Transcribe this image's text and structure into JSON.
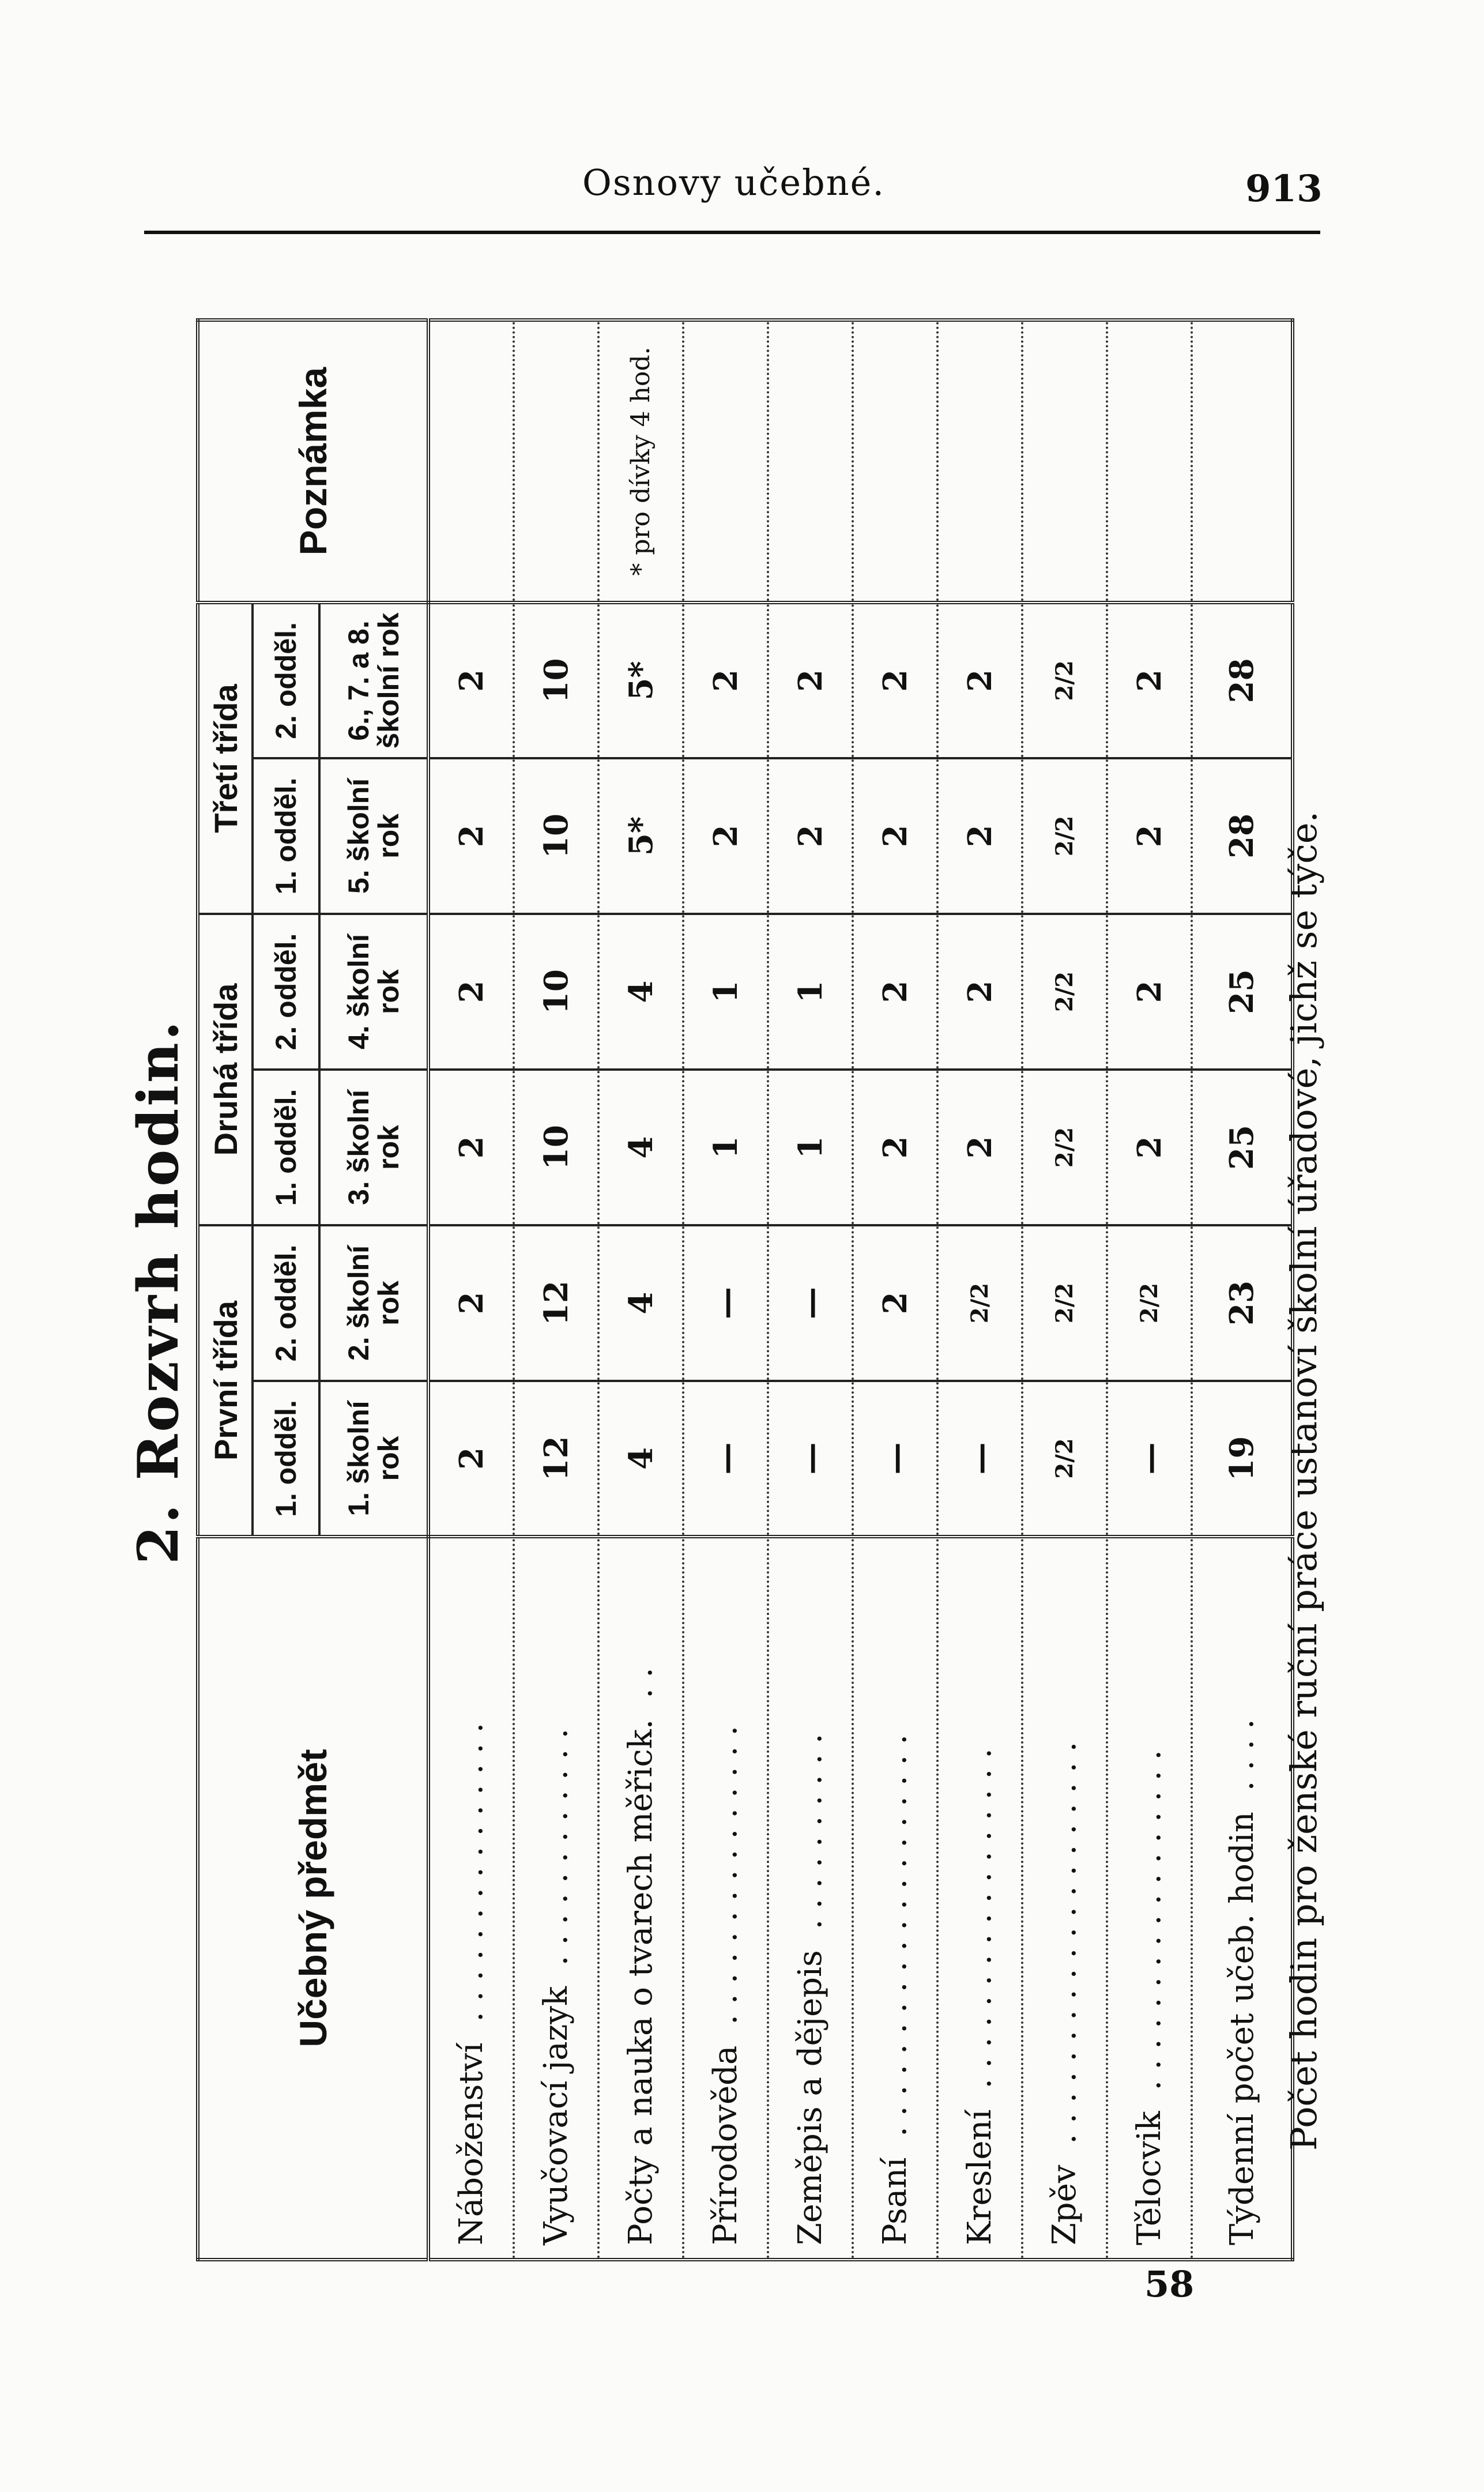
{
  "page_header": {
    "running_title": "Osnovy učebné.",
    "page_number": "913",
    "folio": "58"
  },
  "section_title": "2. Rozvrh hodin.",
  "table": {
    "subject_header": "Učebný předmět",
    "note_header": "Poznámka",
    "classes": [
      "První třída",
      "Druhá třída",
      "Třetí třída"
    ],
    "divisions": [
      "1. odděl.",
      "2. odděl.",
      "1. odděl.",
      "2. odděl.",
      "1. odděl.",
      "2. odděl."
    ],
    "school_years": [
      "1. školní rok",
      "2. školní rok",
      "3. školní rok",
      "4. školní rok",
      "5. školní rok",
      "6., 7. a 8. školní rok"
    ],
    "rows": [
      {
        "subject": "Náboženství",
        "values": [
          "2",
          "2",
          "2",
          "2",
          "2",
          "2"
        ]
      },
      {
        "subject": "Vyučovací jazyk",
        "values": [
          "12",
          "12",
          "10",
          "10",
          "10",
          "10"
        ]
      },
      {
        "subject": "Počty a nauka o tvarech měřick.",
        "values": [
          "4",
          "4",
          "4",
          "4",
          "5*",
          "5*"
        ],
        "note": "* pro dívky 4 hod."
      },
      {
        "subject": "Přírodověda",
        "values": [
          "—",
          "—",
          "1",
          "1",
          "2",
          "2"
        ]
      },
      {
        "subject": "Zeměpis a dějepis",
        "values": [
          "—",
          "—",
          "1",
          "1",
          "2",
          "2"
        ]
      },
      {
        "subject": "Psaní",
        "values": [
          "—",
          "2",
          "2",
          "2",
          "2",
          "2"
        ]
      },
      {
        "subject": "Kreslení",
        "values": [
          "—",
          "2/2",
          "2",
          "2",
          "2",
          "2"
        ]
      },
      {
        "subject": "Zpěv",
        "values": [
          "2/2",
          "2/2",
          "2/2",
          "2/2",
          "2/2",
          "2/2"
        ]
      },
      {
        "subject": "Tělocvik",
        "values": [
          "—",
          "2/2",
          "2",
          "2",
          "2",
          "2"
        ]
      },
      {
        "subject": "Týdenní počet učeb. hodin",
        "values": [
          "19",
          "23",
          "25",
          "25",
          "28",
          "28"
        ]
      }
    ]
  },
  "footnote": "Počet hodin pro ženské ruční práce ustanoví školní úřadové, jichž se týče."
}
